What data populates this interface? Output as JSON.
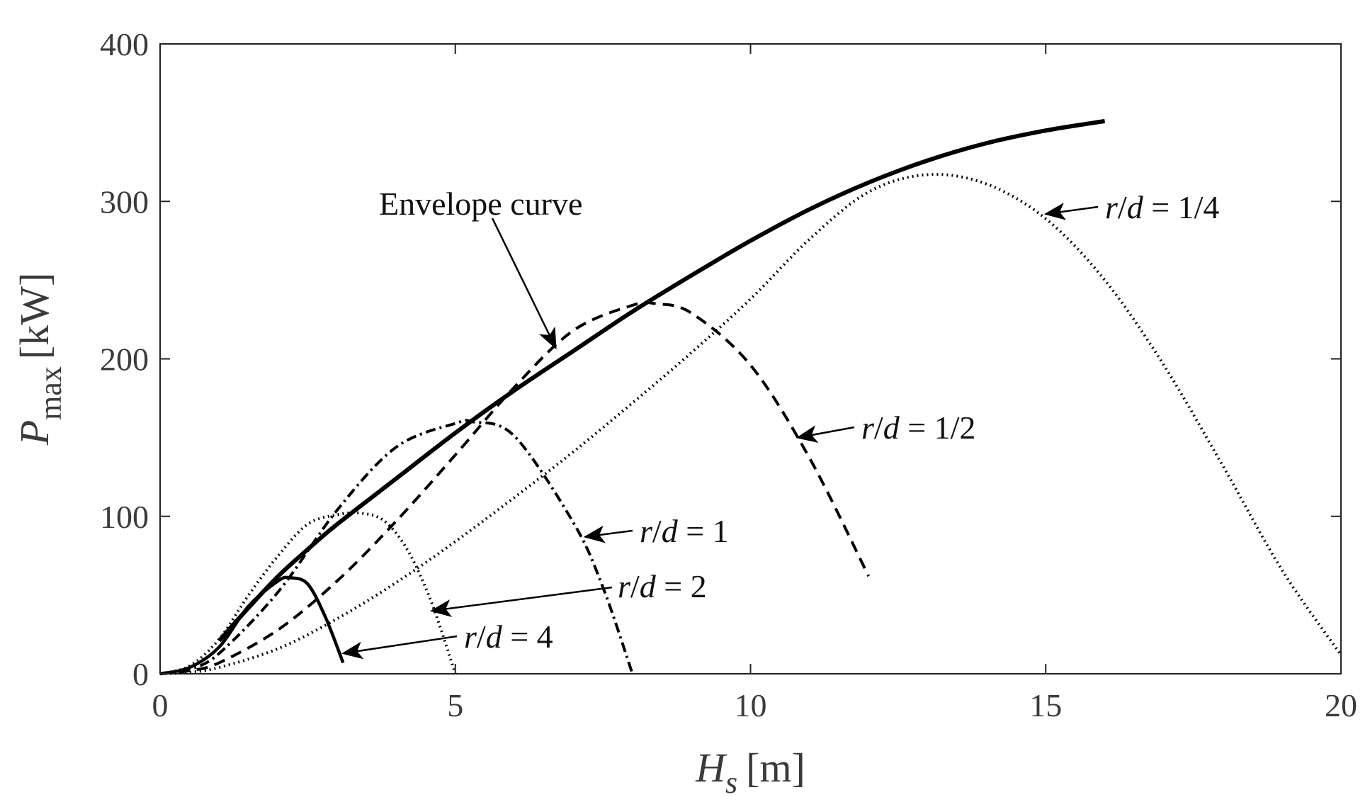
{
  "chart_data": {
    "type": "line",
    "title": "",
    "xlabel": {
      "symbol": "H",
      "subscript": "s",
      "unit": "[m]"
    },
    "ylabel": {
      "symbol": "P",
      "subscript": "max",
      "unit": "[kW]"
    },
    "xlim": [
      0,
      20
    ],
    "ylim": [
      0,
      400
    ],
    "xticks": [
      0,
      5,
      10,
      15,
      20
    ],
    "yticks": [
      0,
      100,
      200,
      300,
      400
    ],
    "grid": false,
    "legend": "none",
    "color": "#000000",
    "series": [
      {
        "label": "Envelope curve",
        "style": "solid-thick",
        "x": [
          1.0,
          1.5,
          2.0,
          2.5,
          3.0,
          4.0,
          5.0,
          6.0,
          7.0,
          8.0,
          9.0,
          10.0,
          11.0,
          12.0,
          13.0,
          14.0,
          15.0,
          16.0
        ],
        "y": [
          21,
          42,
          62,
          79,
          95,
          124,
          153,
          180,
          205,
          230,
          253,
          275,
          295,
          312,
          326,
          337,
          345,
          351
        ]
      },
      {
        "label": "r/d = 1/4",
        "style": "dotted",
        "x": [
          0.0,
          0.5,
          1.0,
          2.0,
          3.0,
          4.0,
          5.0,
          6.0,
          7.0,
          8.0,
          9.0,
          10.0,
          11.0,
          12.0,
          13.0,
          14.0,
          15.0,
          16.0,
          17.0,
          18.0,
          19.0,
          20.0
        ],
        "y": [
          0,
          1,
          4,
          16,
          35,
          58,
          84,
          112,
          141,
          172,
          204,
          238,
          276,
          306,
          317,
          311,
          289,
          250,
          196,
          132,
          66,
          12
        ]
      },
      {
        "label": "r/d = 1/2",
        "style": "dashed",
        "x": [
          0.0,
          0.5,
          1.0,
          2.0,
          3.0,
          4.0,
          5.0,
          6.0,
          7.0,
          8.0,
          8.4,
          9.0,
          10.0,
          11.0,
          12.0
        ],
        "y": [
          0,
          2,
          7,
          28,
          59,
          97,
          139,
          182,
          218,
          234,
          235,
          229,
          196,
          137,
          62
        ]
      },
      {
        "label": "r/d = 1",
        "style": "dash-dot",
        "x": [
          0.0,
          0.5,
          1.0,
          2.0,
          3.0,
          4.0,
          5.0,
          5.3,
          6.0,
          7.0,
          7.5,
          8.0
        ],
        "y": [
          0,
          3,
          13,
          52,
          104,
          144,
          159,
          160,
          151,
          96,
          55,
          0
        ]
      },
      {
        "label": "r/d = 2",
        "style": "dotted",
        "x": [
          0.0,
          0.5,
          1.0,
          1.5,
          2.0,
          2.5,
          3.0,
          3.4,
          3.8,
          4.2,
          4.6,
          5.0
        ],
        "y": [
          0,
          5,
          22,
          50,
          75,
          95,
          101,
          102,
          97,
          78,
          45,
          0
        ]
      },
      {
        "label": "r/d = 4",
        "style": "solid",
        "x": [
          0.0,
          0.5,
          1.0,
          1.5,
          2.0,
          2.2,
          2.5,
          2.8,
          3.1
        ],
        "y": [
          0,
          4,
          17,
          43,
          59,
          61,
          57,
          36,
          7
        ]
      }
    ],
    "annotations": [
      {
        "text": "Envelope curve",
        "parts": [],
        "arrow_to": [
          6.7,
          207
        ]
      },
      {
        "text": "r/d = 1/4",
        "parts": [
          "r",
          "/",
          "d",
          " = 1/4"
        ],
        "arrow_to": [
          15.0,
          292
        ]
      },
      {
        "text": "r/d = 1/2",
        "parts": [
          "r",
          "/",
          "d",
          " = 1/2"
        ],
        "arrow_to": [
          10.8,
          150
        ]
      },
      {
        "text": "r/d = 1",
        "parts": [
          "r",
          "/",
          "d",
          " = 1"
        ],
        "arrow_to": [
          7.2,
          87
        ]
      },
      {
        "text": "r/d = 2",
        "parts": [
          "r",
          "/",
          "d",
          " = 2"
        ],
        "arrow_to": [
          4.6,
          40
        ]
      },
      {
        "text": "r/d = 4",
        "parts": [
          "r",
          "/",
          "d",
          " = 4"
        ],
        "arrow_to": [
          3.1,
          13
        ]
      }
    ]
  }
}
